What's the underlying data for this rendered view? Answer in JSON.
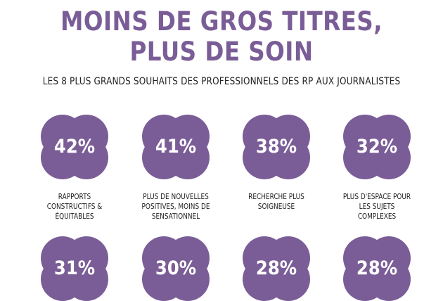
{
  "header": {
    "title_line1": "MOINS DE GROS TITRES,",
    "title_line2": "PLUS DE SOIN",
    "subtitle": "LES 8 PLUS GRANDS SOUHAITS DES PROFESSIONNELS DES RP AUX JOURNALISTES"
  },
  "colors": {
    "accent": "#7a5d97",
    "text": "#222222",
    "background": "#ffffff"
  },
  "stats": [
    {
      "percent": "42%",
      "label": "RAPPORTS\nCONSTRUCTIFS &\nÉQUITABLES"
    },
    {
      "percent": "41%",
      "label": "PLUS DE NOUVELLES\nPOSITIVES, MOINS DE\nSENSATIONNEL"
    },
    {
      "percent": "38%",
      "label": "RECHERCHE PLUS\nSOIGNEUSE"
    },
    {
      "percent": "32%",
      "label": "PLUS D'ESPACE POUR\nLES SUJETS COMPLEXES"
    },
    {
      "percent": "31%",
      "label": ""
    },
    {
      "percent": "30%",
      "label": ""
    },
    {
      "percent": "28%",
      "label": ""
    },
    {
      "percent": "28%",
      "label": ""
    }
  ]
}
